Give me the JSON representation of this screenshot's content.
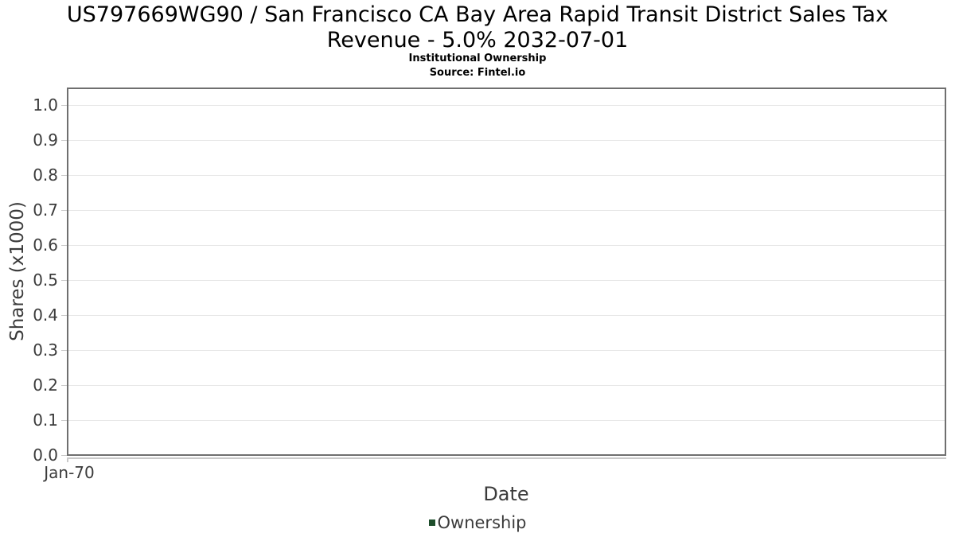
{
  "colors": {
    "title_text": "#000000",
    "axis_text": "#3b3b3b",
    "plot_border": "#6f6f6f",
    "gridline": "#e6e6e6",
    "tick": "#c9c9c9",
    "legend_marker": "#1d4d2b"
  },
  "chart_data": {
    "type": "line",
    "title": "US797669WG90 / San Francisco CA Bay Area Rapid Transit District Sales Tax Revenue - 5.0% 2032-07-01",
    "subtitle": "Institutional Ownership",
    "source": "Source: Fintel.io",
    "xlabel": "Date",
    "ylabel": "Shares (x1000)",
    "x_ticks": [
      "Jan-70"
    ],
    "y_ticks": [
      "0.0",
      "0.1",
      "0.2",
      "0.3",
      "0.4",
      "0.5",
      "0.6",
      "0.7",
      "0.8",
      "0.9",
      "1.0"
    ],
    "ylim": [
      0.0,
      1.05
    ],
    "grid": true,
    "legend_position": "bottom",
    "series": [
      {
        "name": "Ownership",
        "color": "#1d4d2b",
        "x": [],
        "values": []
      }
    ]
  }
}
